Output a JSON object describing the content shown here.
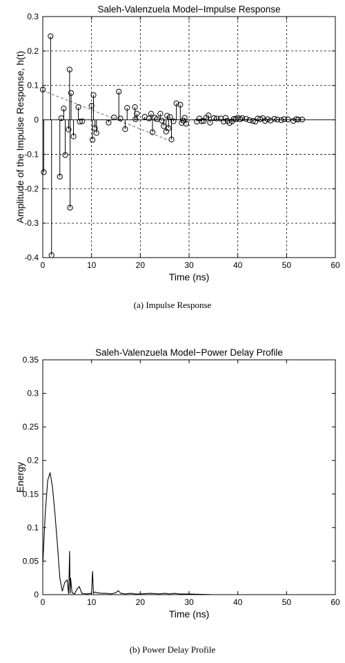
{
  "captions": {
    "a": "(a) Impulse Response",
    "b": "(b) Power Delay Profile"
  },
  "chart_data": [
    {
      "type": "scatter",
      "subtype": "stem",
      "title": "Saleh-Valenzuela Model−Impulse Response",
      "xlabel": "Time (ns)",
      "ylabel": "Amplitude of the Impulse Response, h(t)",
      "xlim": [
        0,
        60
      ],
      "ylim": [
        -0.4,
        0.3
      ],
      "xticks": [
        "0",
        "10",
        "20",
        "30",
        "40",
        "50",
        "60"
      ],
      "yticks": [
        "0.3",
        "0.2",
        "0.1",
        "0",
        "-0.1",
        "-0.2",
        "-0.3",
        "-0.4"
      ],
      "grid": true,
      "marker": "circle",
      "series": [
        {
          "x": [
            0,
            0.2,
            1.6,
            1.8,
            3.5,
            3.8,
            4.3,
            4.6,
            5.3,
            5.5,
            5.6,
            5.8,
            6.3,
            7.3,
            7.6,
            8.1,
            10.0,
            10.2,
            10.4,
            10.7,
            11.0,
            13.5,
            14.6,
            15.6,
            15.9,
            16.9,
            17.3,
            18.9,
            19.0,
            19.3,
            20.9,
            21.8,
            22.2,
            22.5,
            23.0,
            23.4,
            24.1,
            24.4,
            24.8,
            25.3,
            25.5,
            25.8,
            26.1,
            26.4,
            26.8,
            27.4,
            28.2,
            28.5,
            28.8,
            29.1,
            29.4,
            31.6,
            32.1,
            32.6,
            33.0,
            33.5,
            34.0,
            34.3,
            35.1,
            35.7,
            36.5,
            37.1,
            37.5,
            37.9,
            38.3,
            38.8,
            39.2,
            39.6,
            40.0,
            40.5,
            40.9,
            41.7,
            42.4,
            43.1,
            43.6,
            44.1,
            44.6,
            45.1,
            45.6,
            46.1,
            46.7,
            47.5,
            48.1,
            48.9,
            49.5,
            50.3,
            51.4,
            52.0,
            52.4,
            53.2
          ],
          "y": [
            0.088,
            -0.152,
            0.243,
            -0.393,
            -0.165,
            0.005,
            0.033,
            -0.102,
            -0.028,
            0.146,
            -0.255,
            0.078,
            -0.048,
            0.037,
            -0.005,
            -0.004,
            0.041,
            -0.058,
            0.072,
            -0.024,
            -0.038,
            -0.008,
            0.007,
            0.082,
            0.004,
            -0.027,
            0.035,
            0.037,
            0.002,
            0.018,
            0.009,
            0.004,
            0.018,
            -0.036,
            0.006,
            0.002,
            0.018,
            -0.002,
            -0.018,
            -0.034,
            0.012,
            -0.024,
            0.008,
            -0.057,
            -0.004,
            0.048,
            0.044,
            -0.009,
            -0.002,
            0.006,
            -0.011,
            -0.005,
            0.004,
            -0.004,
            -0.003,
            0.006,
            0.013,
            -0.008,
            0.005,
            0.004,
            0.004,
            -0.005,
            0.006,
            -0.003,
            -0.009,
            -0.004,
            0.003,
            0.002,
            0.006,
            0.002,
            0.005,
            0.003,
            -0.001,
            -0.003,
            -0.005,
            0.004,
            0.002,
            0.005,
            -0.003,
            0.002,
            -0.002,
            0.003,
            0.001,
            -0.001,
            0.002,
            0.001,
            -0.003,
            0.002,
            0.001,
            0.001
          ]
        }
      ],
      "envelope": {
        "style": "dashed",
        "x": [
          0,
          26
        ],
        "y": [
          0.085,
          -0.06
        ]
      }
    },
    {
      "type": "line",
      "title": "Saleh-Valenzuela Model−Power Delay Profile",
      "xlabel": "Time (ns)",
      "ylabel": "Energy",
      "xlim": [
        0,
        60
      ],
      "ylim": [
        0,
        0.35
      ],
      "xticks": [
        "0",
        "10",
        "20",
        "30",
        "40",
        "50",
        "60"
      ],
      "yticks": [
        "0.35",
        "0.3",
        "0.25",
        "0.2",
        "0.15",
        "0.1",
        "0.05",
        "0"
      ],
      "grid": false,
      "series": [
        {
          "x": [
            0,
            0.5,
            1.0,
            1.5,
            2.0,
            2.5,
            3.0,
            3.5,
            4.0,
            4.5,
            5.0,
            5.3,
            5.5,
            5.6,
            5.7,
            6.0,
            6.5,
            7.0,
            7.5,
            8.0,
            9.0,
            10.0,
            10.2,
            10.4,
            10.7,
            11.0,
            12.0,
            13.0,
            14.0,
            15.0,
            15.5,
            16.0,
            17.0,
            18.0,
            19.0,
            20.0,
            22.0,
            24.0,
            25.0,
            26.0,
            27.0,
            28.0,
            30.0,
            35.0,
            40.0,
            45.0,
            50.0,
            53.2
          ],
          "y": [
            0.045,
            0.12,
            0.17,
            0.182,
            0.16,
            0.12,
            0.075,
            0.025,
            0.005,
            0.018,
            0.022,
            0.001,
            0.065,
            0.002,
            0.025,
            0.003,
            0.001,
            0.008,
            0.012,
            0.002,
            0.001,
            0.002,
            0.035,
            0.002,
            0.004,
            0.003,
            0.002,
            0.002,
            0.001,
            0.003,
            0.006,
            0.002,
            0.001,
            0.002,
            0.001,
            0.001,
            0.002,
            0.001,
            0.002,
            0.001,
            0.002,
            0.001,
            0.001,
            0.0,
            0.0,
            0.0,
            0.0,
            0.0
          ]
        }
      ]
    }
  ]
}
